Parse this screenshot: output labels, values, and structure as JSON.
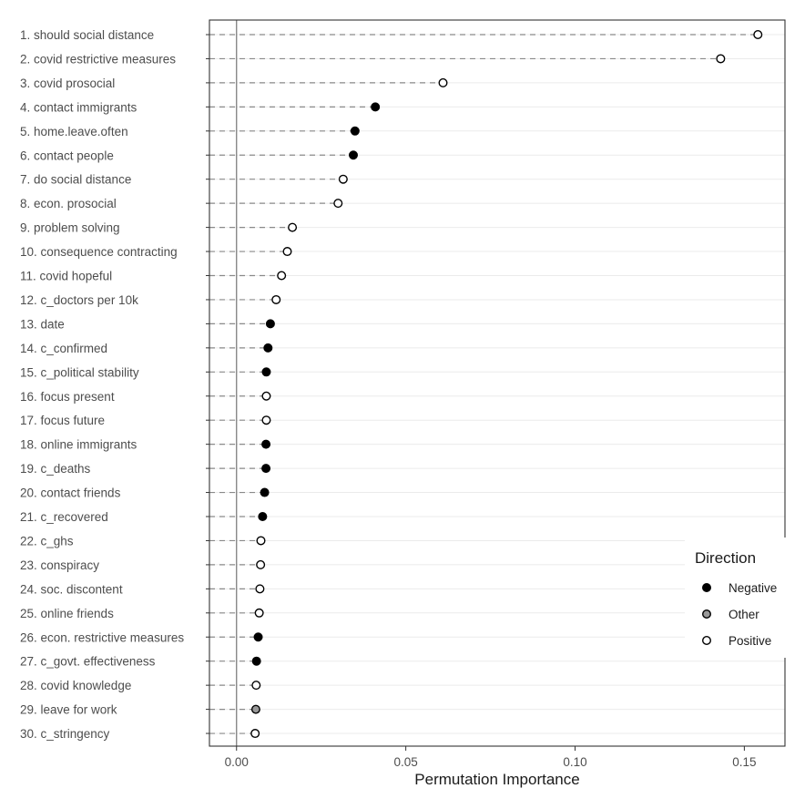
{
  "chart_data": {
    "type": "scatter",
    "title": "",
    "xlabel": "Permutation Importance",
    "ylabel": "",
    "xlim": [
      -0.008,
      0.162
    ],
    "xticks": [
      0.0,
      0.05,
      0.1,
      0.15
    ],
    "xtick_labels": [
      "0.00",
      "0.05",
      "0.10",
      "0.15"
    ],
    "legend": {
      "title": "Direction",
      "position": "right",
      "entries": [
        {
          "label": "Negative",
          "fill": "#000000"
        },
        {
          "label": "Other",
          "fill": "#999999"
        },
        {
          "label": "Positive",
          "fill": "#ffffff"
        }
      ]
    },
    "points": [
      {
        "label": "1. should social distance",
        "value": 0.154,
        "direction": "Positive"
      },
      {
        "label": "2. covid restrictive measures",
        "value": 0.143,
        "direction": "Positive"
      },
      {
        "label": "3. covid prosocial",
        "value": 0.061,
        "direction": "Positive"
      },
      {
        "label": "4. contact immigrants",
        "value": 0.041,
        "direction": "Negative"
      },
      {
        "label": "5. home.leave.often",
        "value": 0.035,
        "direction": "Negative"
      },
      {
        "label": "6. contact people",
        "value": 0.0345,
        "direction": "Negative"
      },
      {
        "label": "7. do social distance",
        "value": 0.0315,
        "direction": "Positive"
      },
      {
        "label": "8. econ. prosocial",
        "value": 0.03,
        "direction": "Positive"
      },
      {
        "label": "9. problem solving",
        "value": 0.0165,
        "direction": "Positive"
      },
      {
        "label": "10. consequence contracting",
        "value": 0.015,
        "direction": "Positive"
      },
      {
        "label": "11. covid hopeful",
        "value": 0.0133,
        "direction": "Positive"
      },
      {
        "label": "12. c_doctors per 10k",
        "value": 0.0117,
        "direction": "Positive"
      },
      {
        "label": "13. date",
        "value": 0.01,
        "direction": "Negative"
      },
      {
        "label": "14. c_confirmed",
        "value": 0.0093,
        "direction": "Negative"
      },
      {
        "label": "15. c_political stability",
        "value": 0.0088,
        "direction": "Negative"
      },
      {
        "label": "16. focus present",
        "value": 0.0088,
        "direction": "Positive"
      },
      {
        "label": "17. focus future",
        "value": 0.0088,
        "direction": "Positive"
      },
      {
        "label": "18. online immigrants",
        "value": 0.0087,
        "direction": "Negative"
      },
      {
        "label": "19. c_deaths",
        "value": 0.0087,
        "direction": "Negative"
      },
      {
        "label": "20. contact friends",
        "value": 0.0083,
        "direction": "Negative"
      },
      {
        "label": "21. c_recovered",
        "value": 0.0077,
        "direction": "Negative"
      },
      {
        "label": "22. c_ghs",
        "value": 0.0072,
        "direction": "Positive"
      },
      {
        "label": "23. conspiracy",
        "value": 0.0071,
        "direction": "Positive"
      },
      {
        "label": "24. soc. discontent",
        "value": 0.0069,
        "direction": "Positive"
      },
      {
        "label": "25. online friends",
        "value": 0.0067,
        "direction": "Positive"
      },
      {
        "label": "26. econ. restrictive measures",
        "value": 0.0064,
        "direction": "Negative"
      },
      {
        "label": "27. c_govt. effectiveness",
        "value": 0.0059,
        "direction": "Negative"
      },
      {
        "label": "28. covid knowledge",
        "value": 0.0058,
        "direction": "Positive"
      },
      {
        "label": "29. leave for work",
        "value": 0.0057,
        "direction": "Other"
      },
      {
        "label": "30. c_stringency",
        "value": 0.0055,
        "direction": "Positive"
      }
    ]
  }
}
